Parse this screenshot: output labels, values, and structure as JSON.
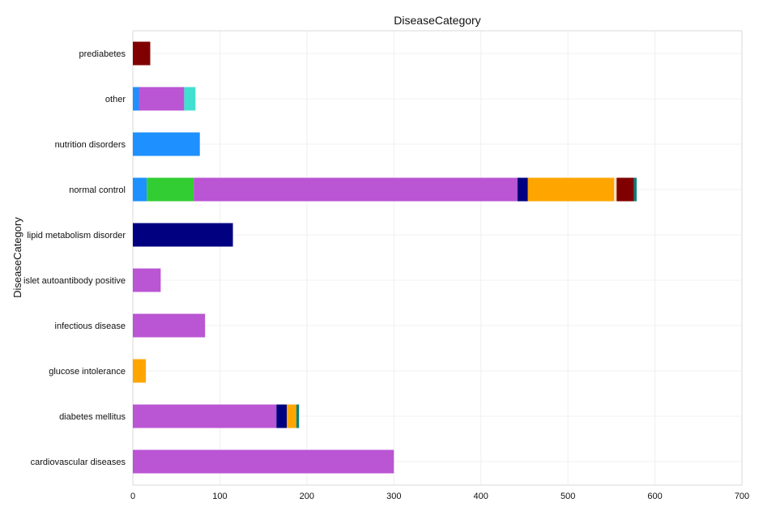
{
  "chart_data": {
    "type": "bar",
    "orientation": "horizontal",
    "stacked": true,
    "title": "DiseaseCategory",
    "xlabel": "",
    "ylabel": "DiseaseCategory",
    "xlim": [
      0,
      700
    ],
    "xticks": [
      0,
      100,
      200,
      300,
      400,
      500,
      600,
      700
    ],
    "grid": true,
    "legend": "none",
    "categories": [
      "cardiovascular diseases",
      "diabetes mellitus",
      "glucose intolerance",
      "infectious disease",
      "islet autoantibody positive",
      "lipid metabolism disorder",
      "normal control",
      "nutrition disorders",
      "other",
      "prediabetes"
    ],
    "series": [
      {
        "color": "#1E90FF",
        "values": [
          0,
          0,
          0,
          0,
          0,
          0,
          16,
          77,
          7,
          0
        ]
      },
      {
        "color": "#32CD32",
        "values": [
          0,
          0,
          0,
          0,
          0,
          0,
          54,
          0,
          0,
          0
        ]
      },
      {
        "color": "#BA55D3",
        "values": [
          300,
          165,
          0,
          83,
          32,
          0,
          372,
          0,
          52,
          0
        ]
      },
      {
        "color": "#000080",
        "values": [
          0,
          12,
          0,
          0,
          0,
          115,
          12,
          0,
          0,
          0
        ]
      },
      {
        "color": "#FFA500",
        "values": [
          0,
          11,
          15,
          0,
          0,
          0,
          99,
          0,
          0,
          0
        ]
      },
      {
        "color": "#F5DEB3",
        "values": [
          0,
          0,
          0,
          0,
          0,
          0,
          3,
          0,
          0,
          0
        ]
      },
      {
        "color": "#800000",
        "values": [
          0,
          0,
          0,
          0,
          0,
          0,
          20,
          0,
          0,
          20
        ]
      },
      {
        "color": "#40E0D0",
        "values": [
          0,
          0,
          0,
          0,
          0,
          0,
          0,
          0,
          13,
          0
        ]
      },
      {
        "color": "#008080",
        "values": [
          0,
          3,
          0,
          0,
          0,
          0,
          3,
          0,
          0,
          0
        ]
      }
    ]
  }
}
